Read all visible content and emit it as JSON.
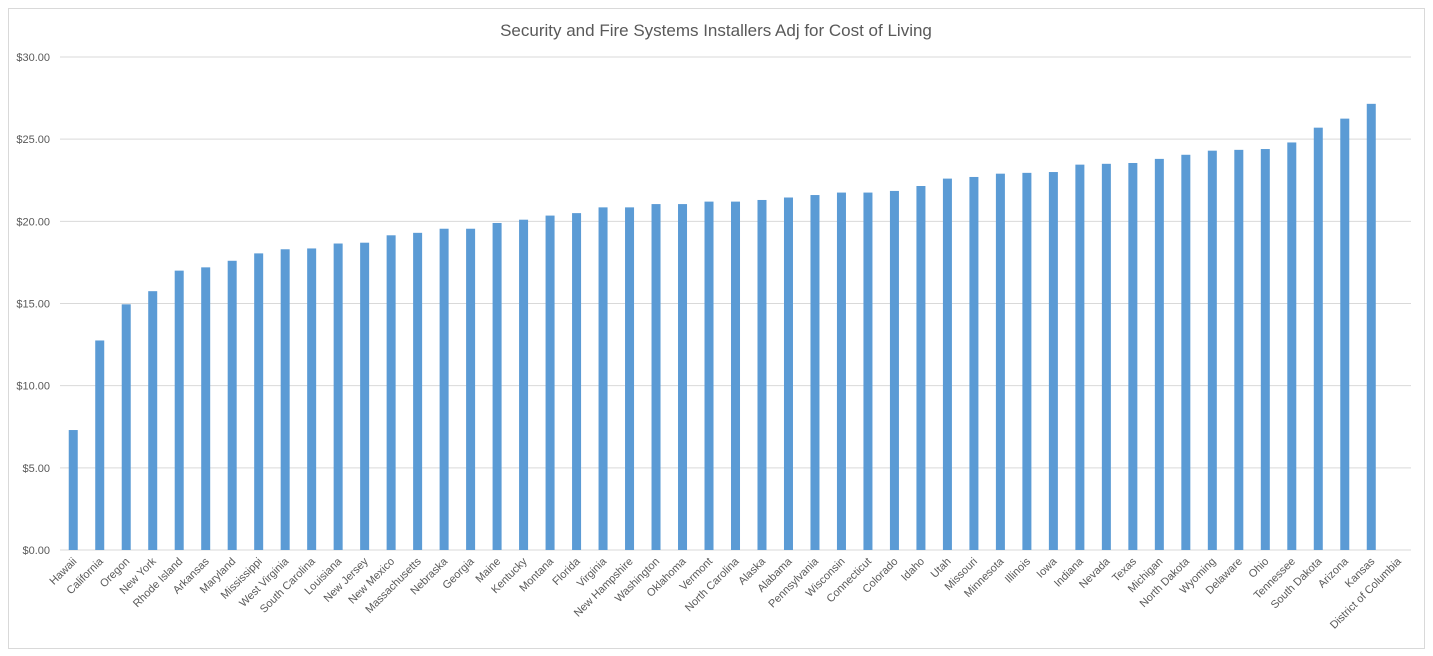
{
  "chart_data": {
    "type": "bar",
    "title": "Security and Fire Systems Installers Adj for Cost of Living",
    "categories": [
      "Hawaii",
      "California",
      "Oregon",
      "New York",
      "Rhode Island",
      "Arkansas",
      "Maryland",
      "Mississippi",
      "West Virginia",
      "South Carolina",
      "Louisiana",
      "New Jersey",
      "New Mexico",
      "Massachusetts",
      "Nebraska",
      "Georgia",
      "Maine",
      "Kentucky",
      "Montana",
      "Florida",
      "Virginia",
      "New Hampshire",
      "Washington",
      "Oklahoma",
      "Vermont",
      "North Carolina",
      "Alaska",
      "Alabama",
      "Pennsylvania",
      "Wisconsin",
      "Connecticut",
      "Colorado",
      "Idaho",
      "Utah",
      "Missouri",
      "Minnesota",
      "Illinois",
      "Iowa",
      "Indiana",
      "Nevada",
      "Texas",
      "Michigan",
      "North Dakota",
      "Wyoming",
      "Delaware",
      "Ohio",
      "Tennessee",
      "South Dakota",
      "Arizona",
      "Kansas",
      "District of Columbia"
    ],
    "values": [
      7.3,
      12.75,
      14.95,
      15.75,
      17.0,
      17.2,
      17.6,
      18.05,
      18.3,
      18.35,
      18.65,
      18.7,
      19.15,
      19.3,
      19.55,
      19.55,
      19.9,
      20.1,
      20.35,
      20.5,
      20.85,
      20.85,
      21.05,
      21.05,
      21.2,
      21.2,
      21.3,
      21.45,
      21.6,
      21.75,
      21.75,
      21.85,
      22.15,
      22.6,
      22.7,
      22.9,
      22.95,
      23.0,
      23.45,
      23.5,
      23.55,
      23.8,
      24.05,
      24.3,
      24.35,
      24.4,
      24.8,
      25.7,
      26.25,
      27.15,
      null
    ],
    "color": "#5b9bd5",
    "ylim": [
      0,
      30
    ],
    "yticks": [
      {
        "value": 0,
        "label": "$0.00"
      },
      {
        "value": 5,
        "label": "$5.00"
      },
      {
        "value": 10,
        "label": "$10.00"
      },
      {
        "value": 15,
        "label": "$15.00"
      },
      {
        "value": 20,
        "label": "$20.00"
      },
      {
        "value": 25,
        "label": "$25.00"
      },
      {
        "value": 30,
        "label": "$30.00"
      }
    ],
    "grid": true
  }
}
